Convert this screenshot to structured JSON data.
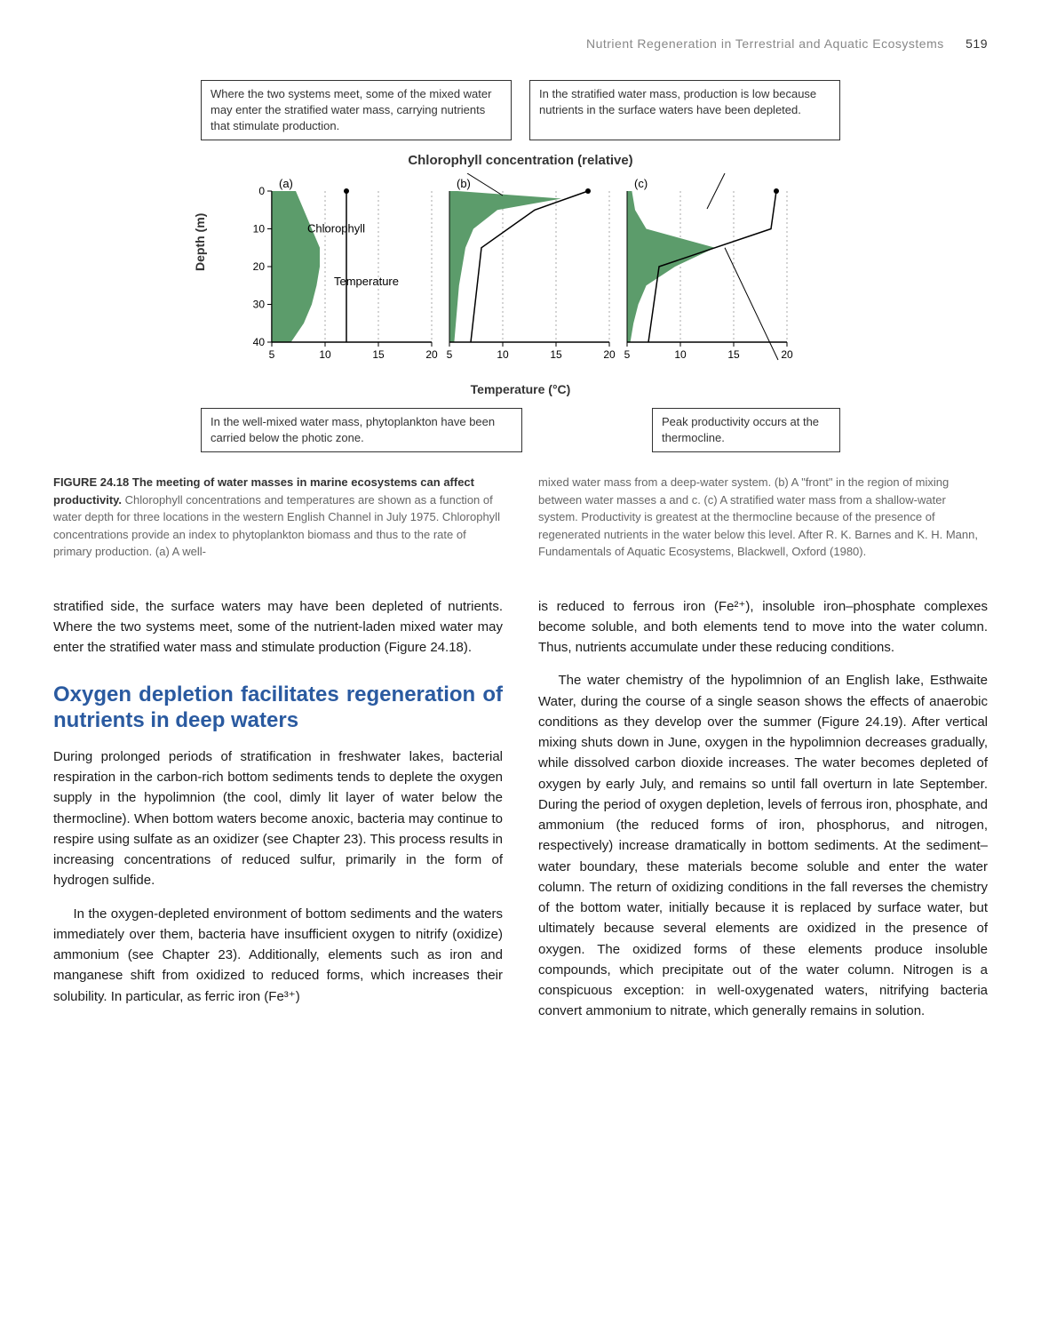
{
  "running_head": {
    "title": "Nutrient Regeneration in Terrestrial and Aquatic Ecosystems",
    "page": "519"
  },
  "figure": {
    "annot_top_left": "Where the two systems meet, some of the mixed water may enter the stratified water mass, carrying nutrients that stimulate production.",
    "annot_top_right": "In the stratified water mass, production is low because nutrients in the surface waters have been depleted.",
    "annot_bottom_left": "In the well-mixed water mass, phytoplankton have been carried below the photic zone.",
    "annot_bottom_right": "Peak productivity occurs at the thermocline.",
    "chart_title": "Chlorophyll concentration (relative)",
    "y_label": "Depth (m)",
    "x_label": "Temperature (°C)",
    "label_a": "(a)",
    "label_b": "(b)",
    "label_c": "(c)",
    "label_chlorophyll": "Chlorophyll",
    "label_temperature": "Temperature",
    "chart": {
      "type": "line",
      "depth_range": [
        0,
        40
      ],
      "depth_ticks": [
        0,
        10,
        20,
        30,
        40
      ],
      "temp_range": [
        5,
        20
      ],
      "temp_ticks": [
        5,
        10,
        15,
        20
      ],
      "background_color": "#ffffff",
      "grid_color": "#aaaaaa",
      "chlorophyll_fill": "#5c9c6b",
      "temperature_line_color": "#000000",
      "temperature_line_width": 1.5,
      "label_fontsize": 13,
      "tick_fontsize": 12,
      "panels": [
        {
          "id": "a",
          "chlorophyll_profile": [
            [
              0.15,
              0
            ],
            [
              0.2,
              5
            ],
            [
              0.25,
              10
            ],
            [
              0.3,
              15
            ],
            [
              0.3,
              20
            ],
            [
              0.28,
              25
            ],
            [
              0.25,
              30
            ],
            [
              0.2,
              35
            ],
            [
              0.12,
              40
            ]
          ],
          "temperature_profile": [
            [
              12,
              0
            ],
            [
              12,
              40
            ]
          ]
        },
        {
          "id": "b",
          "chlorophyll_profile": [
            [
              0.05,
              0
            ],
            [
              0.7,
              2
            ],
            [
              0.3,
              5
            ],
            [
              0.15,
              10
            ],
            [
              0.1,
              15
            ],
            [
              0.08,
              20
            ],
            [
              0.06,
              25
            ],
            [
              0.05,
              30
            ],
            [
              0.04,
              35
            ],
            [
              0.03,
              40
            ]
          ],
          "temperature_profile": [
            [
              18,
              0
            ],
            [
              13,
              5
            ],
            [
              8,
              15
            ],
            [
              7,
              40
            ]
          ]
        },
        {
          "id": "c",
          "chlorophyll_profile": [
            [
              0.03,
              0
            ],
            [
              0.05,
              5
            ],
            [
              0.12,
              10
            ],
            [
              0.55,
              15
            ],
            [
              0.3,
              20
            ],
            [
              0.12,
              25
            ],
            [
              0.07,
              30
            ],
            [
              0.04,
              35
            ],
            [
              0.02,
              40
            ]
          ],
          "temperature_profile": [
            [
              19,
              0
            ],
            [
              18.5,
              10
            ],
            [
              8,
              20
            ],
            [
              7,
              40
            ]
          ]
        }
      ]
    }
  },
  "caption": {
    "label": "FIGURE 24.18",
    "title": "The meeting of water masses in marine ecosystems can affect productivity.",
    "left": " Chlorophyll concentrations and temperatures are shown as a function of water depth for three locations in the western English Channel in July 1975. Chlorophyll concentrations provide an index to phytoplankton biomass and thus to the rate of primary production. (a) A well-",
    "right": "mixed water mass from a deep-water system. (b) A \"front\" in the region of mixing between water masses a and c. (c) A stratified water mass from a shallow-water system. Productivity is greatest at the thermocline because of the presence of regenerated nutrients in the water below this level. After R. K. Barnes and K. H. Mann, Fundamentals of Aquatic Ecosystems, Blackwell, Oxford (1980)."
  },
  "body": {
    "left_p1": "stratified side, the surface waters may have been depleted of nutrients. Where the two systems meet, some of the nutrient-laden mixed water may enter the stratified water mass and stimulate production (Figure 24.18).",
    "section_heading": "Oxygen depletion facilitates regeneration of nutrients in deep waters",
    "left_p2": "During prolonged periods of stratification in freshwater lakes, bacterial respiration in the carbon-rich bottom sediments tends to deplete the oxygen supply in the hypolimnion (the cool, dimly lit layer of water below the thermocline). When bottom waters become anoxic, bacteria may continue to respire using sulfate as an oxidizer (see Chapter 23). This process results in increasing concentrations of reduced sulfur, primarily in the form of hydrogen sulfide.",
    "left_p3": "In the oxygen-depleted environment of bottom sediments and the waters immediately over them, bacteria have insufficient oxygen to nitrify (oxidize) ammonium (see Chapter 23). Additionally, elements such as iron and manganese shift from oxidized to reduced forms, which increases their solubility. In particular, as ferric iron (Fe³⁺)",
    "right_p1": "is reduced to ferrous iron (Fe²⁺), insoluble iron–phosphate complexes become soluble, and both elements tend to move into the water column. Thus, nutrients accumulate under these reducing conditions.",
    "right_p2": "The water chemistry of the hypolimnion of an English lake, Esthwaite Water, during the course of a single season shows the effects of anaerobic conditions as they develop over the summer (Figure 24.19). After vertical mixing shuts down in June, oxygen in the hypolimnion decreases gradually, while dissolved carbon dioxide increases. The water becomes depleted of oxygen by early July, and remains so until fall overturn in late September. During the period of oxygen depletion, levels of ferrous iron, phosphate, and ammonium (the reduced forms of iron, phosphorus, and nitrogen, respectively) increase dramatically in bottom sediments. At the sediment–water boundary, these materials become soluble and enter the water column. The return of oxidizing conditions in the fall reverses the chemistry of the bottom water, initially because it is replaced by surface water, but ultimately because several elements are oxidized in the presence of oxygen. The oxidized forms of these elements produce insoluble compounds, which precipitate out of the water column. Nitrogen is a conspicuous exception: in well-oxygenated waters, nitrifying bacteria convert ammonium to nitrate, which generally remains in solution."
  }
}
